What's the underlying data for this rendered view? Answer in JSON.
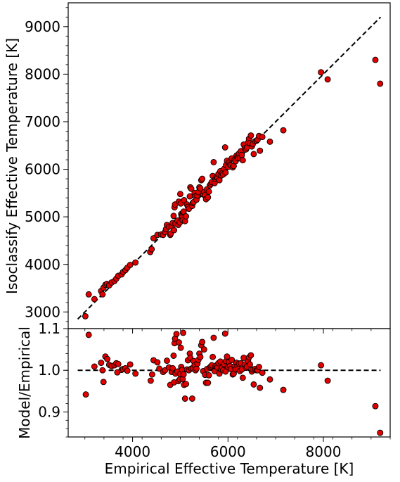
{
  "chart_data": [
    {
      "type": "scatter",
      "panel": "top",
      "xlabel": "Empirical Effective Temperature [K]",
      "ylabel": "Isoclassify Effective Temperature [K]",
      "xlim": [
        2650,
        9400
      ],
      "ylim": [
        2650,
        9500
      ],
      "yticks": [
        3000,
        4000,
        5000,
        6000,
        7000,
        8000,
        9000
      ],
      "xticks": [
        4000,
        6000,
        8000
      ],
      "grid": false,
      "marker_color": "#e00000",
      "reference_line": {
        "x": [
          2850,
          9200
        ],
        "y": [
          2850,
          9200
        ],
        "style": "dashed",
        "color": "#000000"
      },
      "points": [
        [
          3010,
          2910
        ],
        [
          3080,
          3370
        ],
        [
          3200,
          3270
        ],
        [
          3340,
          3440
        ],
        [
          3370,
          3370
        ],
        [
          3390,
          3510
        ],
        [
          3430,
          3570
        ],
        [
          3460,
          3590
        ],
        [
          3510,
          3560
        ],
        [
          3560,
          3620
        ],
        [
          3620,
          3650
        ],
        [
          3660,
          3700
        ],
        [
          3700,
          3760
        ],
        [
          3770,
          3790
        ],
        [
          3800,
          3840
        ],
        [
          3850,
          3880
        ],
        [
          3890,
          3930
        ],
        [
          3950,
          3990
        ],
        [
          4060,
          4040
        ],
        [
          4370,
          4260
        ],
        [
          4400,
          4320
        ],
        [
          4440,
          4550
        ],
        [
          4520,
          4620
        ],
        [
          4600,
          4630
        ],
        [
          4640,
          4620
        ],
        [
          4680,
          4680
        ],
        [
          4700,
          4740
        ],
        [
          4720,
          4830
        ],
        [
          4760,
          4790
        ],
        [
          4790,
          4620
        ],
        [
          4800,
          4650
        ],
        [
          4820,
          4800
        ],
        [
          4840,
          4870
        ],
        [
          4860,
          5020
        ],
        [
          4870,
          4720
        ],
        [
          4880,
          5200
        ],
        [
          4890,
          5260
        ],
        [
          4900,
          4860
        ],
        [
          4940,
          4920
        ],
        [
          4960,
          4830
        ],
        [
          4970,
          5320
        ],
        [
          4990,
          4880
        ],
        [
          5000,
          5480
        ],
        [
          5010,
          5280
        ],
        [
          5020,
          5060
        ],
        [
          5030,
          5020
        ],
        [
          5040,
          5000
        ],
        [
          5050,
          4930
        ],
        [
          5060,
          5090
        ],
        [
          5070,
          5110
        ],
        [
          5080,
          5350
        ],
        [
          5100,
          4910
        ],
        [
          5120,
          5010
        ],
        [
          5140,
          5260
        ],
        [
          5160,
          5210
        ],
        [
          5180,
          5170
        ],
        [
          5200,
          5430
        ],
        [
          5210,
          5620
        ],
        [
          5230,
          5590
        ],
        [
          5250,
          5230
        ],
        [
          5260,
          5290
        ],
        [
          5280,
          5310
        ],
        [
          5300,
          5500
        ],
        [
          5320,
          5430
        ],
        [
          5340,
          5360
        ],
        [
          5360,
          5450
        ],
        [
          5380,
          5520
        ],
        [
          5400,
          5620
        ],
        [
          5420,
          5600
        ],
        [
          5440,
          5770
        ],
        [
          5460,
          5800
        ],
        [
          5480,
          5470
        ],
        [
          5500,
          5520
        ],
        [
          5520,
          5460
        ],
        [
          5540,
          5370
        ],
        [
          5560,
          5580
        ],
        [
          5580,
          5410
        ],
        [
          5600,
          5530
        ],
        [
          5620,
          5660
        ],
        [
          5640,
          5690
        ],
        [
          5660,
          5730
        ],
        [
          5680,
          5860
        ],
        [
          5700,
          6150
        ],
        [
          5720,
          5710
        ],
        [
          5740,
          5800
        ],
        [
          5760,
          5830
        ],
        [
          5780,
          5820
        ],
        [
          5800,
          5900
        ],
        [
          5820,
          5770
        ],
        [
          5840,
          5960
        ],
        [
          5860,
          5870
        ],
        [
          5880,
          5920
        ],
        [
          5900,
          5890
        ],
        [
          5920,
          6010
        ],
        [
          5940,
          6460
        ],
        [
          5950,
          5930
        ],
        [
          5960,
          6090
        ],
        [
          5980,
          6180
        ],
        [
          6000,
          6050
        ],
        [
          6020,
          6140
        ],
        [
          6040,
          6100
        ],
        [
          6060,
          6080
        ],
        [
          6080,
          6230
        ],
        [
          6100,
          6040
        ],
        [
          6120,
          6070
        ],
        [
          6140,
          6200
        ],
        [
          6160,
          6170
        ],
        [
          6180,
          6290
        ],
        [
          6200,
          6260
        ],
        [
          6210,
          6230
        ],
        [
          6230,
          6330
        ],
        [
          6250,
          6230
        ],
        [
          6270,
          6380
        ],
        [
          6290,
          6300
        ],
        [
          6310,
          6190
        ],
        [
          6330,
          6520
        ],
        [
          6350,
          6440
        ],
        [
          6380,
          6420
        ],
        [
          6400,
          6460
        ],
        [
          6420,
          6560
        ],
        [
          6440,
          6640
        ],
        [
          6460,
          6550
        ],
        [
          6480,
          6710
        ],
        [
          6500,
          6480
        ],
        [
          6520,
          6530
        ],
        [
          6540,
          6320
        ],
        [
          6570,
          6590
        ],
        [
          6600,
          6600
        ],
        [
          6620,
          6620
        ],
        [
          6650,
          6700
        ],
        [
          6670,
          6390
        ],
        [
          6720,
          6680
        ],
        [
          6880,
          6580
        ],
        [
          7160,
          6820
        ],
        [
          7950,
          8040
        ],
        [
          8090,
          7890
        ],
        [
          9090,
          8300
        ],
        [
          9190,
          7800
        ]
      ]
    },
    {
      "type": "scatter",
      "panel": "bottom",
      "xlabel": "Empirical Effective Temperature [K]",
      "ylabel": "Model/Empirical",
      "xlim": [
        2650,
        9400
      ],
      "ylim": [
        0.84,
        1.1
      ],
      "yticks": [
        0.9,
        1.0,
        1.1
      ],
      "xticks": [
        4000,
        6000,
        8000
      ],
      "grid": false,
      "marker_color": "#e00000",
      "reference_line": {
        "x": [
          2850,
          9200
        ],
        "y": [
          1.0,
          1.0
        ],
        "style": "dashed",
        "color": "#000000"
      },
      "points": [
        [
          3020,
          0.942
        ],
        [
          3080,
          1.085
        ],
        [
          3200,
          1.009
        ],
        [
          3340,
          1.018
        ],
        [
          3370,
          1.0
        ],
        [
          3390,
          0.972
        ],
        [
          3430,
          1.033
        ],
        [
          3470,
          1.027
        ],
        [
          3510,
          1.013
        ],
        [
          3560,
          1.01
        ],
        [
          3620,
          1.012
        ],
        [
          3660,
          1.017
        ],
        [
          3680,
          0.995
        ],
        [
          3700,
          1.015
        ],
        [
          3770,
          1.001
        ],
        [
          3800,
          1.003
        ],
        [
          3850,
          1.005
        ],
        [
          3890,
          0.999
        ],
        [
          3950,
          1.014
        ],
        [
          4060,
          0.992
        ],
        [
          4380,
          0.975
        ],
        [
          4410,
          0.99
        ],
        [
          4440,
          1.024
        ],
        [
          4520,
          1.019
        ],
        [
          4560,
          1.004
        ],
        [
          4640,
          0.996
        ],
        [
          4680,
          1.0
        ],
        [
          4720,
          1.023
        ],
        [
          4760,
          1.007
        ],
        [
          4790,
          0.965
        ],
        [
          4820,
          0.996
        ],
        [
          4840,
          1.005
        ],
        [
          4860,
          1.035
        ],
        [
          4870,
          0.971
        ],
        [
          4880,
          1.065
        ],
        [
          4890,
          1.076
        ],
        [
          4900,
          0.992
        ],
        [
          4920,
          1.087
        ],
        [
          4940,
          0.997
        ],
        [
          4960,
          0.974
        ],
        [
          4970,
          1.067
        ],
        [
          4990,
          0.978
        ],
        [
          5000,
          0.991
        ],
        [
          5010,
          1.054
        ],
        [
          5020,
          1.008
        ],
        [
          5040,
          1.001
        ],
        [
          5050,
          0.979
        ],
        [
          5060,
          1.09
        ],
        [
          5070,
          0.99
        ],
        [
          5080,
          0.965
        ],
        [
          5100,
          0.932
        ],
        [
          5120,
          0.967
        ],
        [
          5140,
          1.002
        ],
        [
          5160,
          1.024
        ],
        [
          5180,
          1.0
        ],
        [
          5200,
          1.04
        ],
        [
          5210,
          1.03
        ],
        [
          5230,
          1.004
        ],
        [
          5250,
          0.932
        ],
        [
          5260,
          1.005
        ],
        [
          5280,
          1.022
        ],
        [
          5300,
          1.012
        ],
        [
          5320,
          1.0
        ],
        [
          5340,
          1.004
        ],
        [
          5360,
          1.016
        ],
        [
          5380,
          1.025
        ],
        [
          5400,
          1.04
        ],
        [
          5420,
          1.032
        ],
        [
          5440,
          1.06
        ],
        [
          5460,
          1.068
        ],
        [
          5480,
          0.998
        ],
        [
          5500,
          1.05
        ],
        [
          5520,
          0.989
        ],
        [
          5540,
          0.97
        ],
        [
          5560,
          1.003
        ],
        [
          5580,
          0.97
        ],
        [
          5600,
          0.988
        ],
        [
          5620,
          1.007
        ],
        [
          5640,
          1.009
        ],
        [
          5660,
          1.012
        ],
        [
          5680,
          1.032
        ],
        [
          5700,
          1.078
        ],
        [
          5720,
          0.998
        ],
        [
          5740,
          1.01
        ],
        [
          5760,
          1.012
        ],
        [
          5780,
          1.007
        ],
        [
          5800,
          1.017
        ],
        [
          5820,
          0.992
        ],
        [
          5840,
          1.021
        ],
        [
          5860,
          1.002
        ],
        [
          5880,
          1.007
        ],
        [
          5900,
          1.0
        ],
        [
          5920,
          1.015
        ],
        [
          5940,
          1.088
        ],
        [
          5950,
          0.997
        ],
        [
          5960,
          1.022
        ],
        [
          5980,
          1.033
        ],
        [
          6000,
          1.008
        ],
        [
          6020,
          1.02
        ],
        [
          6040,
          1.01
        ],
        [
          6060,
          1.003
        ],
        [
          6080,
          1.025
        ],
        [
          6100,
          0.99
        ],
        [
          6120,
          0.992
        ],
        [
          6140,
          1.01
        ],
        [
          6160,
          1.002
        ],
        [
          6180,
          1.018
        ],
        [
          6200,
          1.01
        ],
        [
          6210,
          1.003
        ],
        [
          6230,
          1.016
        ],
        [
          6250,
          0.998
        ],
        [
          6270,
          1.017
        ],
        [
          6290,
          1.002
        ],
        [
          6310,
          0.982
        ],
        [
          6330,
          1.03
        ],
        [
          6350,
          1.014
        ],
        [
          6380,
          1.006
        ],
        [
          6400,
          1.009
        ],
        [
          6420,
          1.022
        ],
        [
          6440,
          1.031
        ],
        [
          6460,
          1.014
        ],
        [
          6480,
          1.036
        ],
        [
          6500,
          0.997
        ],
        [
          6520,
          1.002
        ],
        [
          6540,
          0.966
        ],
        [
          6570,
          1.003
        ],
        [
          6600,
          1.0
        ],
        [
          6620,
          1.0
        ],
        [
          6650,
          1.008
        ],
        [
          6670,
          0.958
        ],
        [
          6720,
          0.994
        ],
        [
          6880,
          0.978
        ],
        [
          7160,
          0.953
        ],
        [
          7950,
          1.012
        ],
        [
          8090,
          0.975
        ],
        [
          9090,
          0.914
        ],
        [
          9190,
          0.85
        ]
      ]
    }
  ]
}
